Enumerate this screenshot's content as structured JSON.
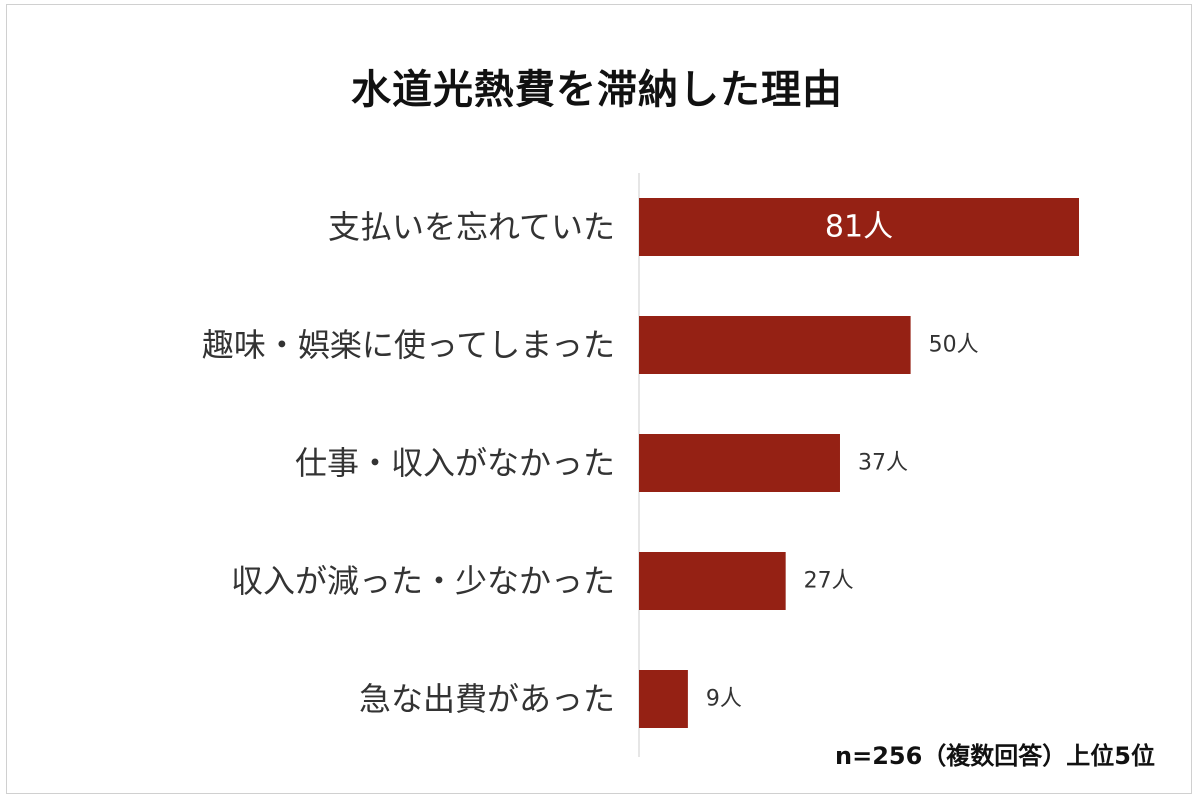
{
  "chart_data": {
    "type": "bar",
    "orientation": "horizontal",
    "title": "水道光熱費を滞納した理由",
    "categories": [
      "支払いを忘れていた",
      "趣味・娯楽に使ってしまった",
      "仕事・収入がなかった",
      "収入が減った・少なかった",
      "急な出費があった"
    ],
    "values": [
      81,
      50,
      37,
      27,
      9
    ],
    "value_labels": [
      "81人",
      "50人",
      "37人",
      "27人",
      "9人"
    ],
    "unit": "人",
    "xlim": [
      0,
      81
    ],
    "bar_color": "#952114",
    "grid": false,
    "axis_line_color": "#e6e6e6",
    "legend": "none",
    "note": "n=256（複数回答）上位5位"
  }
}
